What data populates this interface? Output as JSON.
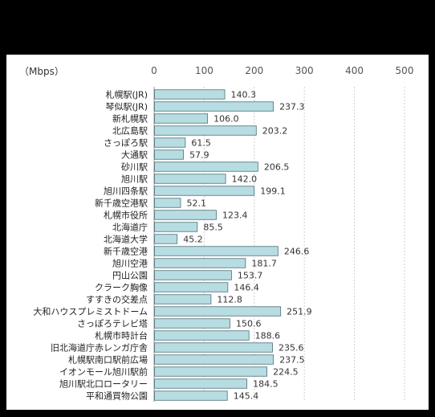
{
  "chart_data": {
    "type": "bar",
    "orientation": "horizontal",
    "unit_label": "（Mbps）",
    "xlim": [
      0,
      500
    ],
    "xticks": [
      "0",
      "100",
      "200",
      "300",
      "400",
      "500"
    ],
    "grid": "vertical dashed",
    "bar_color": "#b7dde3",
    "bar_edge_color": "#4a6f75",
    "categories": [
      "札幌駅(JR)",
      "琴似駅(JR)",
      "新札幌駅",
      "北広島駅",
      "さっぽろ駅",
      "大通駅",
      "砂川駅",
      "旭川駅",
      "旭川四条駅",
      "新千歳空港駅",
      "札幌市役所",
      "北海道庁",
      "北海道大学",
      "新千歳空港",
      "旭川空港",
      "円山公園",
      "クラーク胸像",
      "すすきの交差点",
      "大和ハウスプレミストドーム",
      "さっぽろテレビ塔",
      "札幌市時計台",
      "旧北海道庁赤レンガ庁舎",
      "札幌駅南口駅前広場",
      "イオンモール旭川駅前",
      "旭川駅北口ロータリー",
      "平和通買物公園"
    ],
    "values": [
      140.3,
      237.3,
      106.0,
      203.2,
      61.5,
      57.9,
      206.5,
      142.0,
      199.1,
      52.1,
      123.4,
      85.5,
      45.2,
      246.6,
      181.7,
      153.7,
      146.4,
      112.8,
      251.9,
      150.6,
      188.6,
      235.6,
      237.5,
      224.5,
      184.5,
      145.4
    ],
    "value_labels": [
      "140.3",
      "237.3",
      "106.0",
      "203.2",
      "61.5",
      "57.9",
      "206.5",
      "142.0",
      "199.1",
      "52.1",
      "123.4",
      "85.5",
      "45.2",
      "246.6",
      "181.7",
      "153.7",
      "146.4",
      "112.8",
      "251.9",
      "150.6",
      "188.6",
      "235.6",
      "237.5",
      "224.5",
      "184.5",
      "145.4"
    ]
  }
}
